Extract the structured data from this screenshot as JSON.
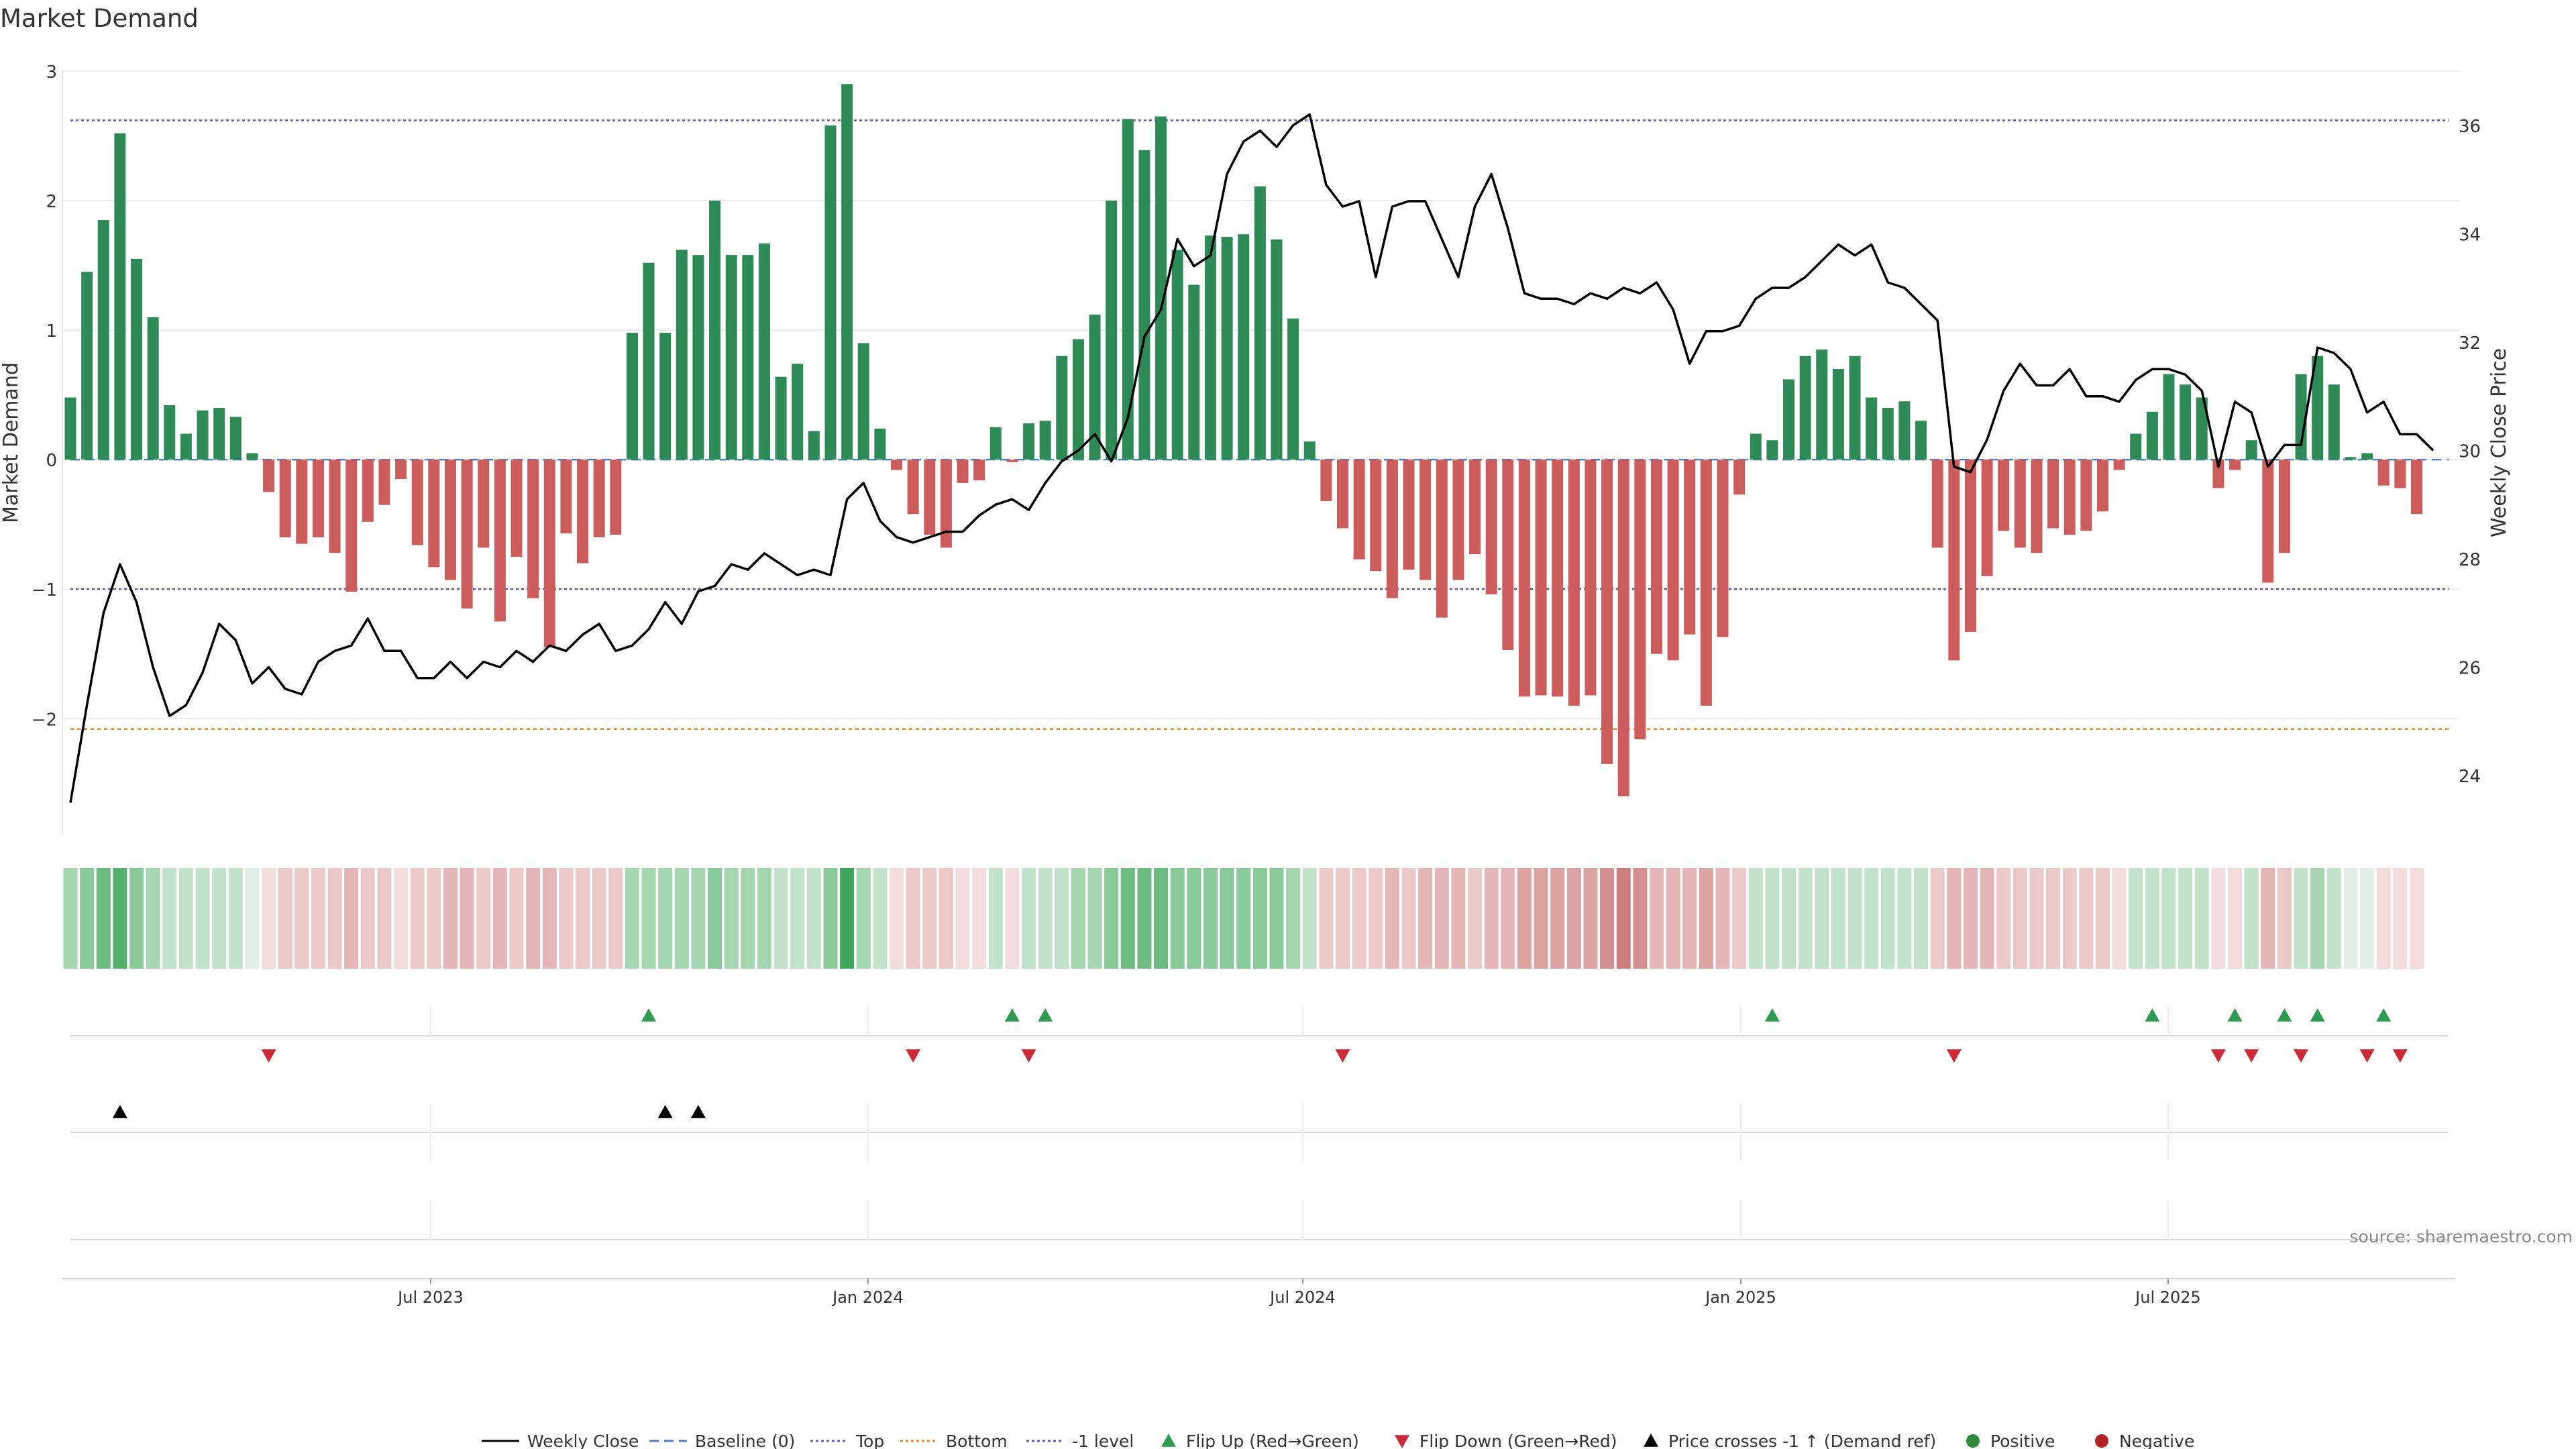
{
  "chart_data": {
    "type": "bar",
    "title": "Market Demand",
    "ylabel_left": "Market Demand",
    "ylabel_right": "Weekly Close Price",
    "ylim_left": [
      -2.9,
      3.0
    ],
    "ylim_right": [
      22.9,
      37.0
    ],
    "yticks_left": [
      3,
      2,
      1,
      0,
      -1,
      -2
    ],
    "yticks_left_labels": [
      "3",
      "2",
      "1",
      "0",
      "−1",
      "−2"
    ],
    "yticks_right": [
      36,
      34,
      32,
      30,
      28,
      26,
      24
    ],
    "xtick_labels": [
      {
        "label": "Jul 2023",
        "week": 22
      },
      {
        "label": "Jan 2024",
        "week": 48
      },
      {
        "label": "Jul 2024",
        "week": 74
      },
      {
        "label": "Jan 2025",
        "week": 100
      },
      {
        "label": "Jul 2025",
        "week": 126
      }
    ],
    "reference_lines": {
      "top": 2.62,
      "bottom": -2.08,
      "minus_one": -1.0,
      "baseline": 0
    },
    "demand": [
      0.48,
      1.45,
      1.85,
      2.52,
      1.55,
      1.1,
      0.42,
      0.2,
      0.38,
      0.4,
      0.33,
      0.05,
      -0.25,
      -0.6,
      -0.65,
      -0.6,
      -0.72,
      -1.02,
      -0.48,
      -0.35,
      -0.15,
      -0.66,
      -0.83,
      -0.93,
      -1.15,
      -0.68,
      -1.25,
      -0.75,
      -1.07,
      -1.45,
      -0.57,
      -0.8,
      -0.6,
      -0.58,
      0.98,
      1.52,
      0.98,
      1.62,
      1.58,
      2.0,
      1.58,
      1.58,
      1.67,
      0.64,
      0.74,
      0.22,
      2.58,
      2.9,
      0.9,
      0.24,
      -0.08,
      -0.42,
      -0.58,
      -0.68,
      -0.18,
      -0.16,
      0.25,
      -0.02,
      0.28,
      0.3,
      0.8,
      0.93,
      1.12,
      2.0,
      2.63,
      2.39,
      2.65,
      1.62,
      1.35,
      1.73,
      1.72,
      1.74,
      2.11,
      1.7,
      1.09,
      0.14,
      -0.32,
      -0.53,
      -0.77,
      -0.86,
      -1.07,
      -0.85,
      -0.93,
      -1.22,
      -0.93,
      -0.73,
      -1.04,
      -1.47,
      -1.83,
      -1.82,
      -1.83,
      -1.9,
      -1.82,
      -2.35,
      -2.6,
      -2.16,
      -1.5,
      -1.55,
      -1.35,
      -1.9,
      -1.37,
      -0.27,
      0.2,
      0.15,
      0.62,
      0.8,
      0.85,
      0.7,
      0.8,
      0.48,
      0.4,
      0.45,
      0.3,
      -0.68,
      -1.55,
      -1.33,
      -0.9,
      -0.55,
      -0.68,
      -0.72,
      -0.53,
      -0.58,
      -0.55,
      -0.4,
      -0.08,
      0.2,
      0.37,
      0.66,
      0.58,
      0.48,
      -0.22,
      -0.08,
      0.15,
      -0.95,
      -0.72,
      0.66,
      0.8,
      0.58,
      0.02,
      0.05,
      -0.2,
      -0.22,
      -0.42
    ],
    "weekly_close": [
      23.5,
      25.3,
      27.0,
      27.9,
      27.2,
      26.0,
      25.1,
      25.3,
      25.9,
      26.8,
      26.5,
      25.7,
      26.0,
      25.6,
      25.5,
      26.1,
      26.3,
      26.4,
      26.9,
      26.3,
      26.3,
      25.8,
      25.8,
      26.1,
      25.8,
      26.1,
      26.0,
      26.3,
      26.1,
      26.4,
      26.3,
      26.6,
      26.8,
      26.3,
      26.4,
      26.7,
      27.2,
      26.8,
      27.4,
      27.5,
      27.9,
      27.8,
      28.1,
      27.9,
      27.7,
      27.8,
      27.7,
      29.1,
      29.4,
      28.7,
      28.4,
      28.3,
      28.4,
      28.5,
      28.5,
      28.8,
      29.0,
      29.1,
      28.9,
      29.4,
      29.8,
      30.0,
      30.3,
      29.8,
      30.6,
      32.1,
      32.6,
      33.9,
      33.4,
      33.6,
      35.1,
      35.7,
      35.9,
      35.6,
      36.0,
      36.2,
      34.9,
      34.5,
      34.6,
      33.2,
      34.5,
      34.6,
      34.6,
      33.9,
      33.2,
      34.5,
      35.1,
      34.1,
      32.9,
      32.8,
      32.8,
      32.7,
      32.9,
      32.8,
      33.0,
      32.9,
      33.1,
      32.6,
      31.6,
      32.2,
      32.2,
      32.3,
      32.8,
      33.0,
      33.0,
      33.2,
      33.5,
      33.8,
      33.6,
      33.8,
      33.1,
      33.0,
      32.7,
      32.4,
      29.7,
      29.6,
      30.2,
      31.1,
      31.6,
      31.2,
      31.2,
      31.5,
      31.0,
      31.0,
      30.9,
      31.3,
      31.5,
      31.5,
      31.4,
      31.1,
      29.7,
      30.9,
      30.7,
      29.7,
      30.1,
      30.1,
      31.9,
      31.8,
      31.5,
      30.7,
      30.9,
      30.3,
      30.3,
      30.0
    ],
    "heatmap_levels": [
      3,
      4,
      5,
      6,
      4,
      3,
      2,
      2,
      2,
      2,
      2,
      1,
      1,
      2,
      2,
      2,
      2,
      3,
      2,
      2,
      1,
      2,
      2,
      3,
      3,
      2,
      3,
      2,
      3,
      3,
      2,
      2,
      2,
      2,
      3,
      3,
      3,
      3,
      3,
      4,
      3,
      3,
      3,
      2,
      2,
      2,
      4,
      7,
      3,
      2,
      1,
      2,
      2,
      2,
      1,
      1,
      2,
      1,
      2,
      2,
      2,
      3,
      3,
      4,
      5,
      5,
      5,
      4,
      4,
      4,
      4,
      4,
      4,
      4,
      3,
      2,
      2,
      2,
      2,
      2,
      3,
      2,
      3,
      3,
      3,
      2,
      3,
      3,
      4,
      4,
      4,
      4,
      4,
      5,
      6,
      5,
      3,
      3,
      3,
      4,
      3,
      2,
      2,
      2,
      2,
      2,
      2,
      2,
      2,
      2,
      2,
      2,
      2,
      2,
      3,
      3,
      3,
      2,
      2,
      2,
      2,
      2,
      2,
      2,
      1,
      2,
      2,
      2,
      2,
      2,
      1,
      1,
      2,
      3,
      2,
      2,
      3,
      2,
      1,
      1,
      1,
      1,
      1
    ],
    "flip_up_weeks": [
      35,
      57,
      59,
      103,
      126,
      131,
      134,
      136,
      140
    ],
    "flip_down_weeks": [
      12,
      51,
      58,
      77,
      114,
      130,
      132,
      135,
      139,
      141
    ],
    "price_cross_weeks": [
      3,
      36,
      38
    ],
    "legend": [
      {
        "label": "Weekly Close",
        "kind": "line-solid",
        "color": "#000000"
      },
      {
        "label": "Baseline (0)",
        "kind": "line-dash",
        "color": "#4a7fc1"
      },
      {
        "label": "Top",
        "kind": "line-dot",
        "color": "#6a5acd"
      },
      {
        "label": "Bottom",
        "kind": "line-dot",
        "color": "#e08a2c"
      },
      {
        "label": "-1 level",
        "kind": "line-dot",
        "color": "#6a5a9a"
      },
      {
        "label": "Flip Up (Red→Green)",
        "kind": "tri-up",
        "color": "#2e9a52"
      },
      {
        "label": "Flip Down (Green→Red)",
        "kind": "tri-down",
        "color": "#cc2a36"
      },
      {
        "label": "Price crosses -1 ↑ (Demand ref)",
        "kind": "tri-up",
        "color": "#000000"
      },
      {
        "label": "Positive",
        "kind": "dot",
        "color": "#2e8b3a"
      },
      {
        "label": "Negative",
        "kind": "dot",
        "color": "#b22222"
      }
    ],
    "colors": {
      "positive_bar": "#2e8b57",
      "negative_bar": "#cd5c5c",
      "price_line": "#000000",
      "top_line": "#6a5acd",
      "bottom_line": "#e08a2c",
      "minus_one_line": "#6a5a9a",
      "baseline": "#4a7fc1",
      "flip_up": "#2e9a52",
      "flip_down": "#cc2a36",
      "cross_marker": "#000000"
    },
    "source": "source: sharemaestro.com"
  }
}
